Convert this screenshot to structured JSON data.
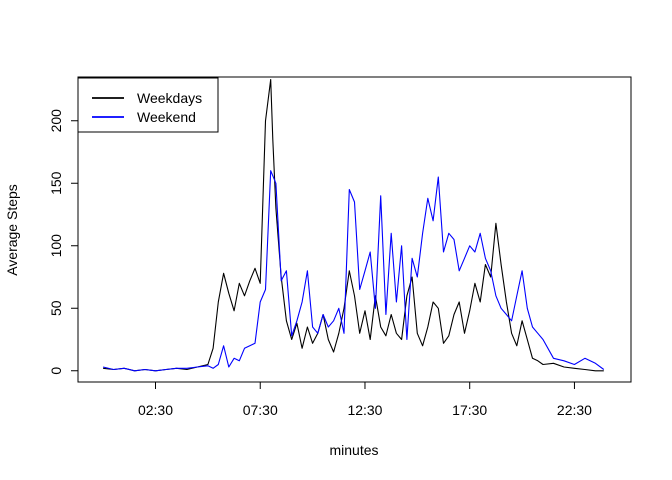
{
  "chart_data": {
    "type": "line",
    "title": "",
    "xlabel": "minutes",
    "ylabel": "Average Steps",
    "x_tick_labels": [
      "02:30",
      "07:30",
      "12:30",
      "17:30",
      "22:30"
    ],
    "x_tick_hours": [
      2.5,
      7.5,
      12.5,
      17.5,
      22.5
    ],
    "y_ticks": [
      0,
      50,
      100,
      150,
      200
    ],
    "xlim": [
      -1.2,
      25.2
    ],
    "ylim": [
      -9,
      235
    ],
    "grid": false,
    "legend_position": "top-left",
    "series": [
      {
        "name": "Weekdays",
        "color": "#000000",
        "x": [
          0,
          0.5,
          1,
          1.5,
          2,
          2.5,
          3,
          3.5,
          4,
          4.5,
          5,
          5.25,
          5.5,
          5.75,
          6,
          6.25,
          6.5,
          6.75,
          7,
          7.25,
          7.5,
          7.75,
          8,
          8.1,
          8.25,
          8.5,
          8.75,
          9,
          9.25,
          9.5,
          9.75,
          10,
          10.25,
          10.5,
          10.75,
          11,
          11.25,
          11.5,
          11.75,
          12,
          12.25,
          12.5,
          12.75,
          13,
          13.25,
          13.5,
          13.75,
          14,
          14.25,
          14.5,
          14.75,
          15,
          15.25,
          15.5,
          15.75,
          16,
          16.25,
          16.5,
          16.75,
          17,
          17.25,
          17.5,
          17.75,
          18,
          18.25,
          18.5,
          18.75,
          19,
          19.25,
          19.5,
          19.75,
          20,
          20.25,
          20.5,
          20.75,
          21,
          21.5,
          22,
          22.5,
          23,
          23.5,
          23.9
        ],
        "values": [
          2,
          1,
          2,
          0,
          1,
          0,
          1,
          2,
          1,
          3,
          5,
          18,
          55,
          78,
          62,
          48,
          70,
          60,
          72,
          82,
          70,
          200,
          233,
          185,
          130,
          75,
          40,
          25,
          38,
          18,
          35,
          22,
          30,
          45,
          25,
          15,
          30,
          50,
          80,
          60,
          30,
          48,
          25,
          60,
          35,
          28,
          45,
          30,
          25,
          60,
          75,
          30,
          20,
          35,
          55,
          50,
          22,
          28,
          45,
          55,
          30,
          48,
          70,
          55,
          85,
          75,
          118,
          85,
          55,
          30,
          20,
          40,
          25,
          10,
          8,
          5,
          6,
          3,
          2,
          1,
          0,
          0
        ]
      },
      {
        "name": "Weekend",
        "color": "#0000ff",
        "x": [
          0,
          0.5,
          1,
          1.5,
          2,
          2.5,
          3,
          3.5,
          4,
          4.5,
          5,
          5.25,
          5.5,
          5.75,
          6,
          6.25,
          6.5,
          6.75,
          7,
          7.25,
          7.5,
          7.75,
          8,
          8.25,
          8.5,
          8.75,
          9,
          9.25,
          9.5,
          9.75,
          10,
          10.25,
          10.5,
          10.75,
          11,
          11.25,
          11.5,
          11.75,
          12,
          12.25,
          12.5,
          12.75,
          13,
          13.25,
          13.5,
          13.75,
          14,
          14.25,
          14.5,
          14.75,
          15,
          15.25,
          15.5,
          15.75,
          16,
          16.25,
          16.5,
          16.75,
          17,
          17.25,
          17.5,
          17.75,
          18,
          18.25,
          18.5,
          18.75,
          19,
          19.25,
          19.5,
          19.75,
          20,
          20.25,
          20.5,
          20.75,
          21,
          21.5,
          22,
          22.5,
          23,
          23.5,
          23.9
        ],
        "values": [
          3,
          1,
          2,
          0,
          1,
          0,
          1,
          2,
          2,
          3,
          4,
          2,
          5,
          20,
          3,
          10,
          8,
          18,
          20,
          22,
          55,
          65,
          160,
          150,
          72,
          80,
          28,
          40,
          55,
          80,
          35,
          30,
          45,
          35,
          40,
          50,
          30,
          145,
          135,
          65,
          80,
          95,
          50,
          140,
          45,
          110,
          55,
          100,
          25,
          90,
          75,
          110,
          138,
          120,
          155,
          95,
          110,
          105,
          80,
          90,
          100,
          95,
          110,
          90,
          80,
          60,
          50,
          45,
          40,
          60,
          80,
          50,
          35,
          30,
          25,
          10,
          8,
          5,
          10,
          6,
          1
        ]
      }
    ]
  }
}
